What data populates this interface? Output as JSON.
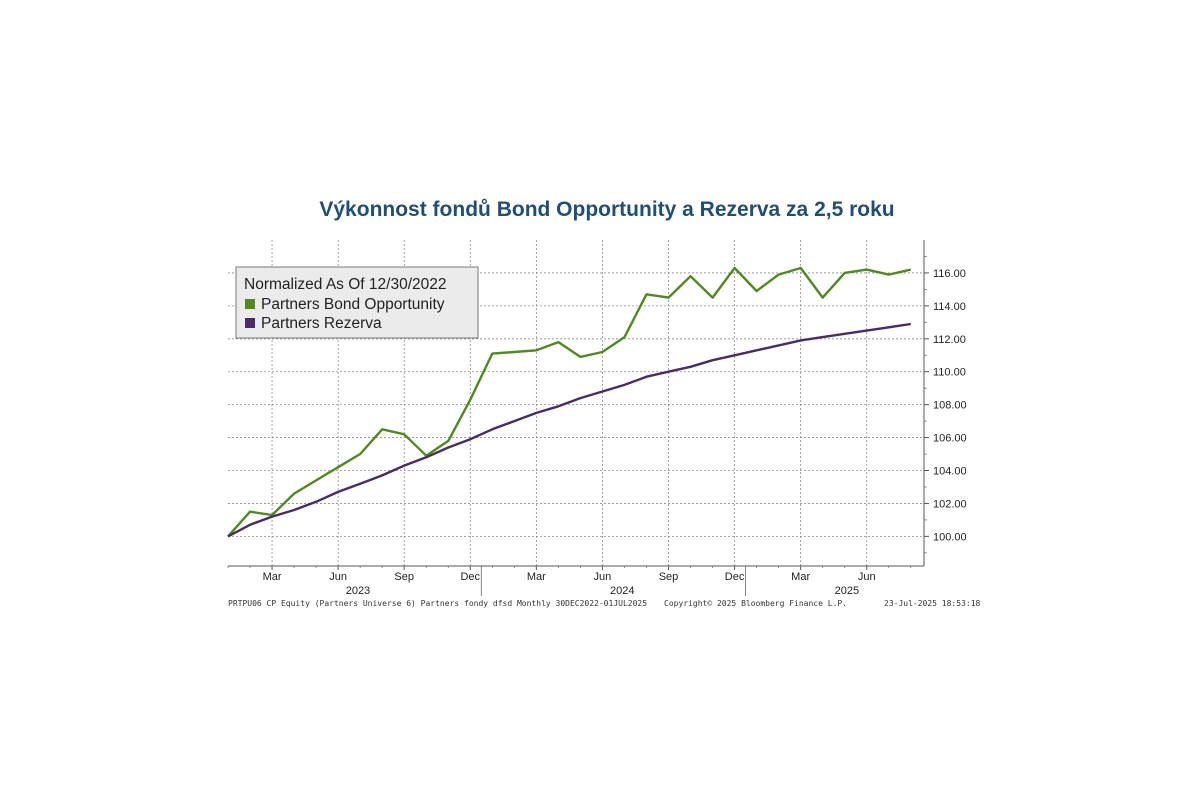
{
  "chart_data": {
    "type": "line",
    "title": "Výkonnost fondů Bond Opportunity a Rezerva za 2,5 roku",
    "legend": {
      "title": "Normalized As Of 12/30/2022",
      "placement": "top-left"
    },
    "x_ticks": [
      {
        "label": "Mar",
        "month": 2
      },
      {
        "label": "Jun",
        "month": 5
      },
      {
        "label": "Sep",
        "month": 8
      },
      {
        "label": "Dec",
        "month": 11
      },
      {
        "label": "Mar",
        "month": 14
      },
      {
        "label": "Jun",
        "month": 17
      },
      {
        "label": "Sep",
        "month": 20
      },
      {
        "label": "Dec",
        "month": 23
      },
      {
        "label": "Mar",
        "month": 26
      },
      {
        "label": "Jun",
        "month": 29
      }
    ],
    "year_labels": [
      {
        "label": "2023",
        "month": 5.9
      },
      {
        "label": "2024",
        "month": 17.9
      },
      {
        "label": "2025",
        "month": 28.1
      }
    ],
    "year_separators": [
      11.5,
      23.5
    ],
    "y_ticks": [
      "100.00",
      "102.00",
      "104.00",
      "106.00",
      "108.00",
      "110.00",
      "112.00",
      "114.00",
      "116.00"
    ],
    "y_tick_values": [
      100,
      102,
      104,
      106,
      108,
      110,
      112,
      114,
      116
    ],
    "ylim": [
      98.2,
      118.0
    ],
    "xlim": [
      0,
      31.6
    ],
    "grid": true,
    "x": [
      "Dec 2022",
      "Jan 2023",
      "Feb 2023",
      "Mar 2023",
      "Apr 2023",
      "May 2023",
      "Jun 2023",
      "Jul 2023",
      "Aug 2023",
      "Sep 2023",
      "Oct 2023",
      "Nov 2023",
      "Dec 2023",
      "Jan 2024",
      "Feb 2024",
      "Mar 2024",
      "Apr 2024",
      "May 2024",
      "Jun 2024",
      "Jul 2024",
      "Aug 2024",
      "Sep 2024",
      "Oct 2024",
      "Nov 2024",
      "Dec 2024",
      "Jan 2025",
      "Feb 2025",
      "Mar 2025",
      "Apr 2025",
      "May 2025",
      "Jun 2025",
      "Jul 2025"
    ],
    "series": [
      {
        "name": "Partners Bond Opportunity",
        "color": "#4e8a1c",
        "values": [
          100.0,
          101.5,
          101.3,
          102.6,
          103.4,
          104.2,
          105.0,
          106.5,
          106.2,
          104.9,
          105.8,
          108.3,
          111.1,
          111.2,
          111.3,
          111.8,
          110.9,
          111.2,
          112.1,
          114.7,
          114.5,
          115.8,
          114.5,
          116.3,
          114.9,
          115.9,
          116.3,
          114.5,
          116.0,
          116.2,
          115.9,
          116.2
        ]
      },
      {
        "name": "Partners Rezerva",
        "color": "#4a2a6a",
        "values": [
          100.0,
          100.7,
          101.2,
          101.6,
          102.1,
          102.7,
          103.2,
          103.7,
          104.3,
          104.8,
          105.4,
          105.9,
          106.5,
          107.0,
          107.5,
          107.9,
          108.4,
          108.8,
          109.2,
          109.7,
          110.0,
          110.3,
          110.7,
          111.0,
          111.3,
          111.6,
          111.9,
          112.1,
          112.3,
          112.5,
          112.7,
          112.9
        ]
      }
    ]
  },
  "footer": {
    "left": "PRTPU06 CP Equity (Partners Universe 6) Partners fondy dfsd  Monthly 30DEC2022-01JUL2025",
    "center": "Copyright© 2025 Bloomberg Finance L.P.",
    "right": "23-Jul-2025 18:53:18"
  }
}
